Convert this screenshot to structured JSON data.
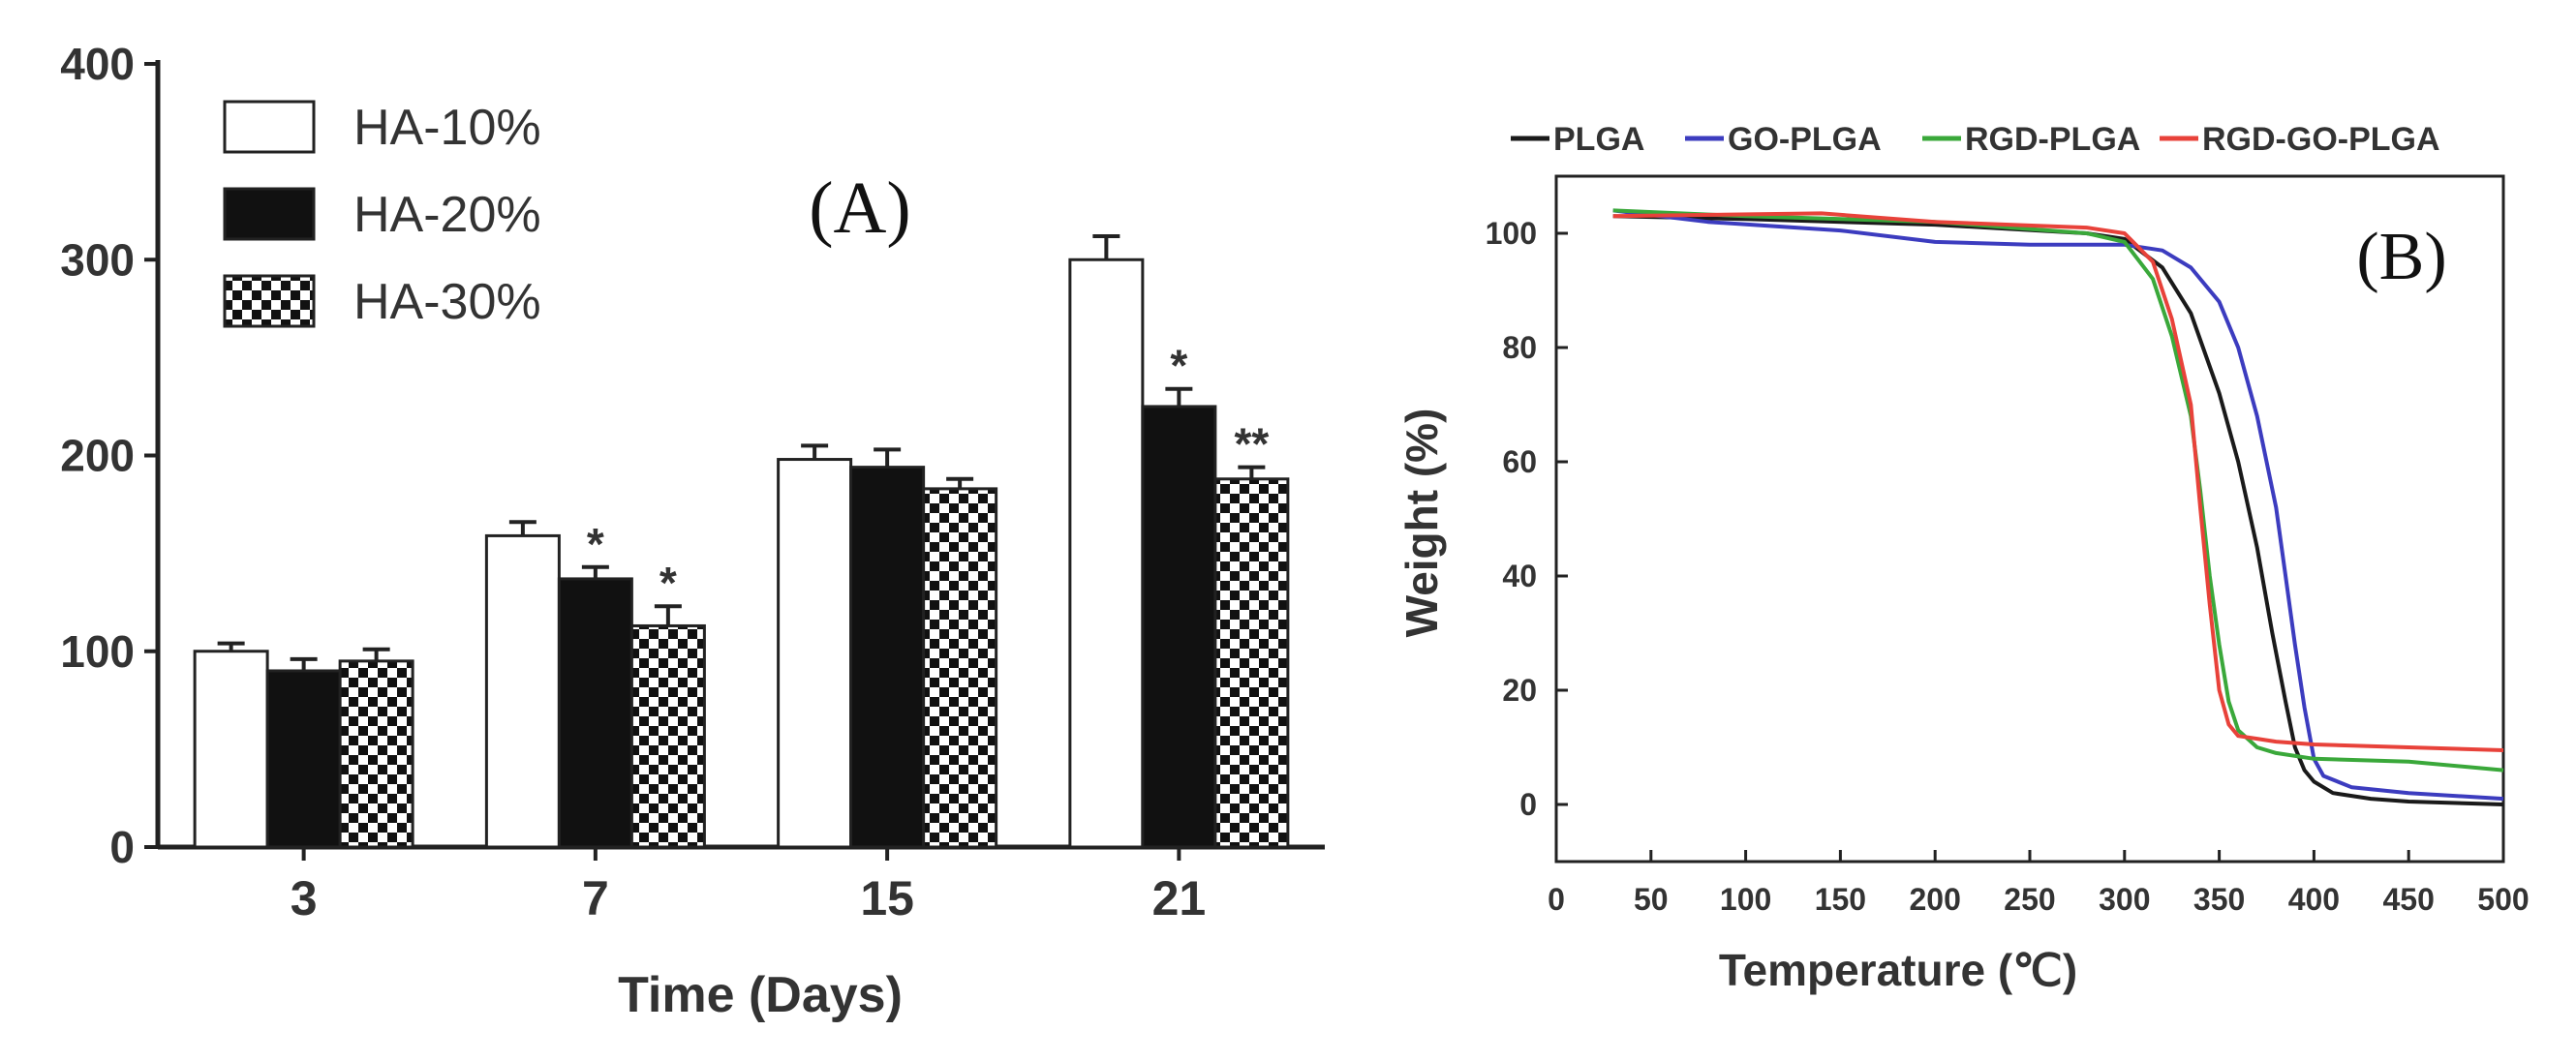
{
  "chart_data": [
    {
      "type": "bar",
      "panel_label": "(A)",
      "title": "",
      "xlabel": "Time (Days)",
      "ylabel": "",
      "categories": [
        "3",
        "7",
        "15",
        "21"
      ],
      "ylim": [
        0,
        400
      ],
      "yticks": [
        "0",
        "100",
        "200",
        "300",
        "400"
      ],
      "series": [
        {
          "name": "HA-10%",
          "pattern": "white",
          "values": [
            100,
            159,
            198,
            300
          ],
          "errors": [
            4,
            7,
            7,
            12
          ]
        },
        {
          "name": "HA-20%",
          "pattern": "black",
          "values": [
            90,
            137,
            194,
            225
          ],
          "errors": [
            6,
            6,
            9,
            9
          ]
        },
        {
          "name": "HA-30%",
          "pattern": "checker",
          "values": [
            95,
            113,
            183,
            188
          ],
          "errors": [
            6,
            10,
            5,
            6
          ]
        }
      ],
      "annotations": [
        {
          "category": "7",
          "series": "HA-20%",
          "text": "*"
        },
        {
          "category": "7",
          "series": "HA-30%",
          "text": "*"
        },
        {
          "category": "21",
          "series": "HA-20%",
          "text": "*"
        },
        {
          "category": "21",
          "series": "HA-30%",
          "text": "**"
        }
      ],
      "legend_position": "top-left"
    },
    {
      "type": "line",
      "panel_label": "(B)",
      "title": "",
      "xlabel": "Temperature (℃)",
      "ylabel": "Weight (%)",
      "xlim": [
        0,
        500
      ],
      "ylim": [
        -10,
        110
      ],
      "xticks": [
        "0",
        "50",
        "100",
        "150",
        "200",
        "250",
        "300",
        "350",
        "400",
        "450",
        "500"
      ],
      "yticks": [
        "0",
        "20",
        "40",
        "60",
        "80",
        "100"
      ],
      "series": [
        {
          "name": "PLGA",
          "color": "#1a1a1a",
          "x": [
            30,
            100,
            200,
            280,
            300,
            320,
            335,
            350,
            360,
            370,
            378,
            385,
            390,
            395,
            400,
            410,
            430,
            450,
            500
          ],
          "y": [
            103,
            102.5,
            101.5,
            100,
            99,
            94,
            86,
            72,
            60,
            45,
            30,
            18,
            10,
            6,
            4,
            2,
            1,
            0.5,
            0
          ]
        },
        {
          "name": "GO-PLGA",
          "color": "#3c3cbf",
          "x": [
            30,
            80,
            150,
            200,
            250,
            300,
            320,
            335,
            350,
            360,
            370,
            380,
            385,
            390,
            395,
            400,
            405,
            420,
            450,
            500
          ],
          "y": [
            104,
            102,
            100.5,
            98.5,
            98,
            98,
            97,
            94,
            88,
            80,
            68,
            52,
            40,
            28,
            17,
            8,
            5,
            3,
            2,
            1
          ]
        },
        {
          "name": "RGD-PLGA",
          "color": "#3aa83a",
          "x": [
            30,
            100,
            200,
            280,
            300,
            315,
            325,
            335,
            340,
            345,
            350,
            355,
            360,
            370,
            380,
            400,
            450,
            500
          ],
          "y": [
            104,
            103,
            102,
            100,
            98.5,
            92,
            82,
            68,
            55,
            40,
            28,
            18,
            13,
            10,
            9,
            8,
            7.5,
            6
          ]
        },
        {
          "name": "RGD-GO-PLGA",
          "color": "#e8423a",
          "x": [
            30,
            140,
            200,
            280,
            300,
            315,
            325,
            335,
            340,
            345,
            350,
            355,
            360,
            370,
            380,
            400,
            450,
            500
          ],
          "y": [
            103,
            103.5,
            102,
            101,
            100,
            95,
            85,
            70,
            52,
            35,
            20,
            14,
            12,
            11.5,
            11,
            10.5,
            10,
            9.5
          ]
        }
      ],
      "legend_position": "top"
    }
  ]
}
